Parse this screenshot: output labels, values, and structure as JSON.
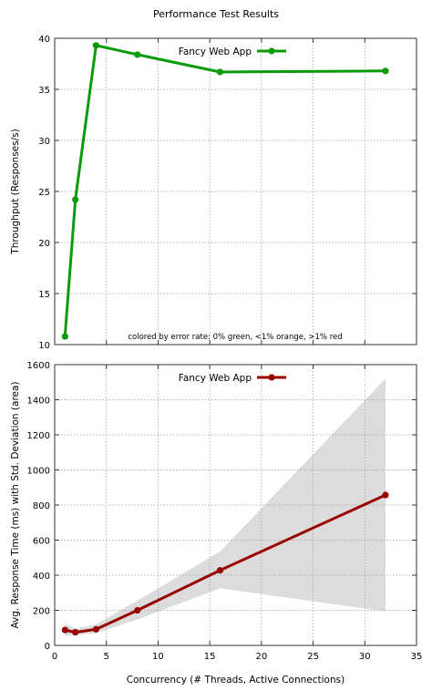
{
  "figure": {
    "title": "Performance Test Results"
  },
  "chart_data": [
    {
      "type": "line",
      "title": "Performance Test Results",
      "xlabel": "",
      "ylabel": "Throughput (Responses/s)",
      "xlim": [
        0,
        35
      ],
      "ylim": [
        10,
        40
      ],
      "yticks": [
        10,
        15,
        20,
        25,
        30,
        35,
        40
      ],
      "xticks": [
        0,
        5,
        10,
        15,
        20,
        25,
        30,
        35
      ],
      "show_x_ticklabels": false,
      "grid": true,
      "legend": "top-center",
      "annotation": "colored by error rate: 0% green, <1% orange, >1% red",
      "series": [
        {
          "name": "Fancy Web App",
          "color": "#0a9a0a",
          "x": [
            1,
            2,
            4,
            8,
            16,
            32
          ],
          "y": [
            10.8,
            24.2,
            39.3,
            38.4,
            36.7,
            36.8
          ]
        }
      ]
    },
    {
      "type": "line",
      "xlabel": "Concurrency (# Threads, Active Connections)",
      "ylabel": "Avg. Response Time (ms) with Std. Deviation (area)",
      "xlim": [
        0,
        35
      ],
      "ylim": [
        0,
        1600
      ],
      "yticks": [
        0,
        200,
        400,
        600,
        800,
        1000,
        1200,
        1400,
        1600
      ],
      "xticks": [
        0,
        5,
        10,
        15,
        20,
        25,
        30,
        35
      ],
      "show_x_ticklabels": true,
      "grid": true,
      "legend": "top-center",
      "series": [
        {
          "name": "Fancy Web App",
          "color": "#990000",
          "x": [
            1,
            2,
            4,
            8,
            16,
            32
          ],
          "y": [
            88,
            75,
            92,
            200,
            428,
            857
          ],
          "std_upper": [
            125,
            95,
            120,
            255,
            535,
            1520
          ],
          "std_lower": [
            55,
            60,
            70,
            148,
            325,
            195
          ],
          "band_color": "#dcdcdc"
        }
      ]
    }
  ]
}
